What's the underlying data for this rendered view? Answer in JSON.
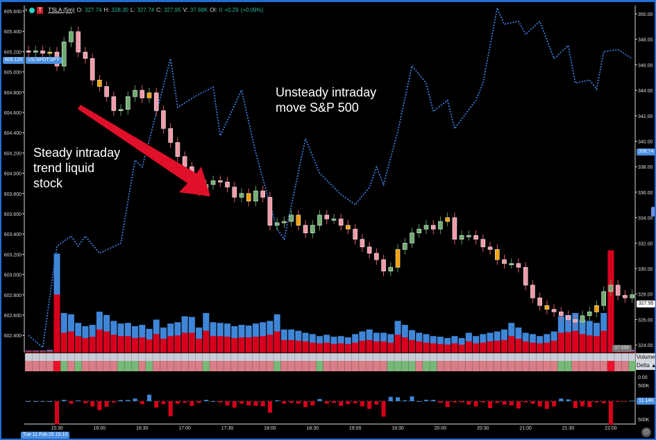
{
  "header": {
    "symbol": "TSLA (5m)",
    "o_label": "O:",
    "o": "327.74",
    "h_label": "H:",
    "h": "328.30",
    "l_label": "L:",
    "l": "327.74",
    "c_label": "C:",
    "c": "327.95",
    "v_label": "V:",
    "v": "37.69K",
    "oi_label": "OI:",
    "oi": "0",
    "change": "+0.29",
    "change_pct": "(+0.09%)"
  },
  "annotations": {
    "left": [
      "Steady intraday",
      "trend liquid",
      "stock"
    ],
    "right": [
      "Unsteady intraday",
      "move S&P 500"
    ]
  },
  "colors": {
    "spy_line": "#3d7fe0",
    "up": "#6fae6f",
    "down": "#f29aa8",
    "volume_buy": "#3f86d8",
    "volume_sell": "#d7001c",
    "arrow": "#e0102a",
    "border": "#1f6fd6"
  },
  "left_axis": {
    "ticks": [
      "605.600",
      "605.400",
      "605.200",
      "605.000",
      "604.800",
      "604.600",
      "604.400",
      "604.200",
      "604.000",
      "603.800",
      "603.600",
      "603.400",
      "603.200",
      "603.000",
      "602.800",
      "602.600",
      "602.400"
    ],
    "current": "605.120",
    "series_label": "US:SPOT:SPY"
  },
  "right_axis": {
    "ticks": [
      "350.00",
      "348.00",
      "346.00",
      "344.00",
      "342.00",
      "340.00",
      "338.00",
      "336.00",
      "334.00",
      "332.00",
      "330.00",
      "328.00",
      "326.00",
      "324.00"
    ],
    "spy_marker": "339.74",
    "last_price": "327.95",
    "volume_last": "37.69K"
  },
  "rows": {
    "volume_label": "Volume",
    "delta_label": "Delta ▲"
  },
  "delta_axis": {
    "top": "0.00",
    "top2": "500K",
    "current": "11.14K",
    "bottom": "500K"
  },
  "time_axis": {
    "labels": [
      "15:30",
      "16:00",
      "16:30",
      "17:00",
      "17:30",
      "18:00",
      "18:30",
      "19:00",
      "19:30",
      "20:00",
      "20:30",
      "21:00",
      "21:30",
      "22:00"
    ],
    "cursor_date": "Tue 11 Feb 25 15:10"
  },
  "chart_data": {
    "type": "candlestick",
    "start_time": "15:10",
    "interval": "5m",
    "tsla_close": [
      347.0,
      347.1,
      346.9,
      347.0,
      345.9,
      347.8,
      348.6,
      347.0,
      346.5,
      344.8,
      344.3,
      343.5,
      342.4,
      342.5,
      343.5,
      344.0,
      343.4,
      343.8,
      342.4,
      341.0,
      339.9,
      338.8,
      338.0,
      337.2,
      336.1,
      336.6,
      336.9,
      336.8,
      336.4,
      335.6,
      335.9,
      335.3,
      336.1,
      335.6,
      333.4,
      333.6,
      333.7,
      334.2,
      333.4,
      332.8,
      333.4,
      334.2,
      333.9,
      333.9,
      333.4,
      333.1,
      332.3,
      331.7,
      331.2,
      330.7,
      329.8,
      330.1,
      331.5,
      332.0,
      332.8,
      333.1,
      333.4,
      333.1,
      333.7,
      334.0,
      332.3,
      332.6,
      332.6,
      332.3,
      331.7,
      331.5,
      330.7,
      330.4,
      330.4,
      330.1,
      328.7,
      327.7,
      327.1,
      326.8,
      326.6,
      326.3,
      326.0,
      325.8,
      326.3,
      326.6,
      327.1,
      328.2,
      328.7,
      327.9,
      327.7,
      327.95
    ],
    "spy": [
      {
        "t": "15:10",
        "v": 602.4
      },
      {
        "t": "15:20",
        "v": 602.28
      },
      {
        "t": "15:30",
        "v": 603.28
      },
      {
        "t": "15:40",
        "v": 603.38
      },
      {
        "t": "15:45",
        "v": 603.28
      },
      {
        "t": "15:50",
        "v": 603.38
      },
      {
        "t": "16:00",
        "v": 603.21
      },
      {
        "t": "16:15",
        "v": 603.31
      },
      {
        "t": "16:25",
        "v": 604.13
      },
      {
        "t": "16:30",
        "v": 604.06
      },
      {
        "t": "16:50",
        "v": 605.13
      },
      {
        "t": "16:55",
        "v": 604.65
      },
      {
        "t": "17:10",
        "v": 604.78
      },
      {
        "t": "17:20",
        "v": 604.85
      },
      {
        "t": "17:25",
        "v": 604.37
      },
      {
        "t": "17:40",
        "v": 604.82
      },
      {
        "t": "17:50",
        "v": 604.2
      },
      {
        "t": "18:05",
        "v": 603.45
      },
      {
        "t": "18:10",
        "v": 603.35
      },
      {
        "t": "18:25",
        "v": 604.34
      },
      {
        "t": "18:35",
        "v": 604.0
      },
      {
        "t": "18:50",
        "v": 603.79
      },
      {
        "t": "19:00",
        "v": 603.69
      },
      {
        "t": "19:10",
        "v": 603.86
      },
      {
        "t": "19:15",
        "v": 604.06
      },
      {
        "t": "19:20",
        "v": 603.89
      },
      {
        "t": "19:30",
        "v": 604.41
      },
      {
        "t": "19:40",
        "v": 605.06
      },
      {
        "t": "19:50",
        "v": 604.89
      },
      {
        "t": "19:55",
        "v": 604.61
      },
      {
        "t": "20:05",
        "v": 604.72
      },
      {
        "t": "20:10",
        "v": 604.44
      },
      {
        "t": "20:25",
        "v": 604.72
      },
      {
        "t": "20:30",
        "v": 604.89
      },
      {
        "t": "20:40",
        "v": 605.63
      },
      {
        "t": "20:45",
        "v": 605.47
      },
      {
        "t": "20:55",
        "v": 605.5
      },
      {
        "t": "21:00",
        "v": 605.37
      },
      {
        "t": "21:10",
        "v": 605.5
      },
      {
        "t": "21:20",
        "v": 605.13
      },
      {
        "t": "21:30",
        "v": 605.26
      },
      {
        "t": "21:35",
        "v": 604.89
      },
      {
        "t": "21:45",
        "v": 604.92
      },
      {
        "t": "21:50",
        "v": 604.83
      },
      {
        "t": "21:55",
        "v": 605.2
      },
      {
        "t": "22:05",
        "v": 605.22
      },
      {
        "t": "22:15",
        "v": 605.13
      }
    ],
    "volume_k": [
      3,
      3,
      3,
      4,
      150,
      60,
      58,
      45,
      40,
      42,
      62,
      57,
      48,
      44,
      45,
      40,
      42,
      36,
      50,
      38,
      44,
      46,
      55,
      54,
      38,
      60,
      46,
      45,
      44,
      40,
      42,
      41,
      44,
      46,
      48,
      58,
      35,
      35,
      33,
      30,
      28,
      25,
      27,
      24,
      25,
      23,
      28,
      32,
      35,
      30,
      30,
      28,
      48,
      42,
      34,
      30,
      28,
      25,
      24,
      22,
      25,
      22,
      30,
      25,
      28,
      30,
      32,
      35,
      45,
      38,
      30,
      28,
      25,
      28,
      32,
      55,
      57,
      60,
      50,
      48,
      45,
      60,
      155,
      6,
      5,
      4
    ],
    "sell_volume_k": [
      2,
      2,
      2,
      2,
      88,
      30,
      32,
      25,
      22,
      24,
      35,
      32,
      27,
      25,
      25,
      22,
      23,
      20,
      28,
      21,
      25,
      26,
      30,
      30,
      21,
      33,
      25,
      25,
      24,
      22,
      23,
      23,
      24,
      25,
      27,
      32,
      19,
      19,
      18,
      17,
      15,
      14,
      15,
      13,
      14,
      13,
      15,
      18,
      19,
      17,
      17,
      15,
      27,
      23,
      19,
      17,
      15,
      14,
      13,
      12,
      14,
      12,
      17,
      14,
      15,
      17,
      18,
      19,
      25,
      21,
      17,
      15,
      14,
      15,
      18,
      30,
      31,
      33,
      28,
      26,
      25,
      33,
      155,
      3,
      3,
      2
    ],
    "delta_k": [
      0,
      0,
      0,
      0,
      -540,
      30,
      -60,
      15,
      -50,
      -120,
      -210,
      -130,
      -30,
      25,
      25,
      60,
      -70,
      150,
      -150,
      -70,
      -350,
      -60,
      -40,
      -110,
      -40,
      30,
      0,
      -30,
      -100,
      -150,
      -60,
      -100,
      -110,
      -120,
      -270,
      20,
      -60,
      -40,
      -60,
      -140,
      -100,
      50,
      -60,
      -40,
      -110,
      -70,
      -50,
      -120,
      -180,
      -80,
      -360,
      100,
      90,
      20,
      110,
      0,
      30,
      30,
      -40,
      -140,
      -30,
      -30,
      -80,
      -120,
      -30,
      -160,
      -40,
      -80,
      -100,
      -170,
      -30,
      -60,
      -120,
      -180,
      -120,
      60,
      40,
      -160,
      -120,
      -140,
      -30,
      -50,
      -550,
      -20,
      -10,
      11
    ]
  }
}
